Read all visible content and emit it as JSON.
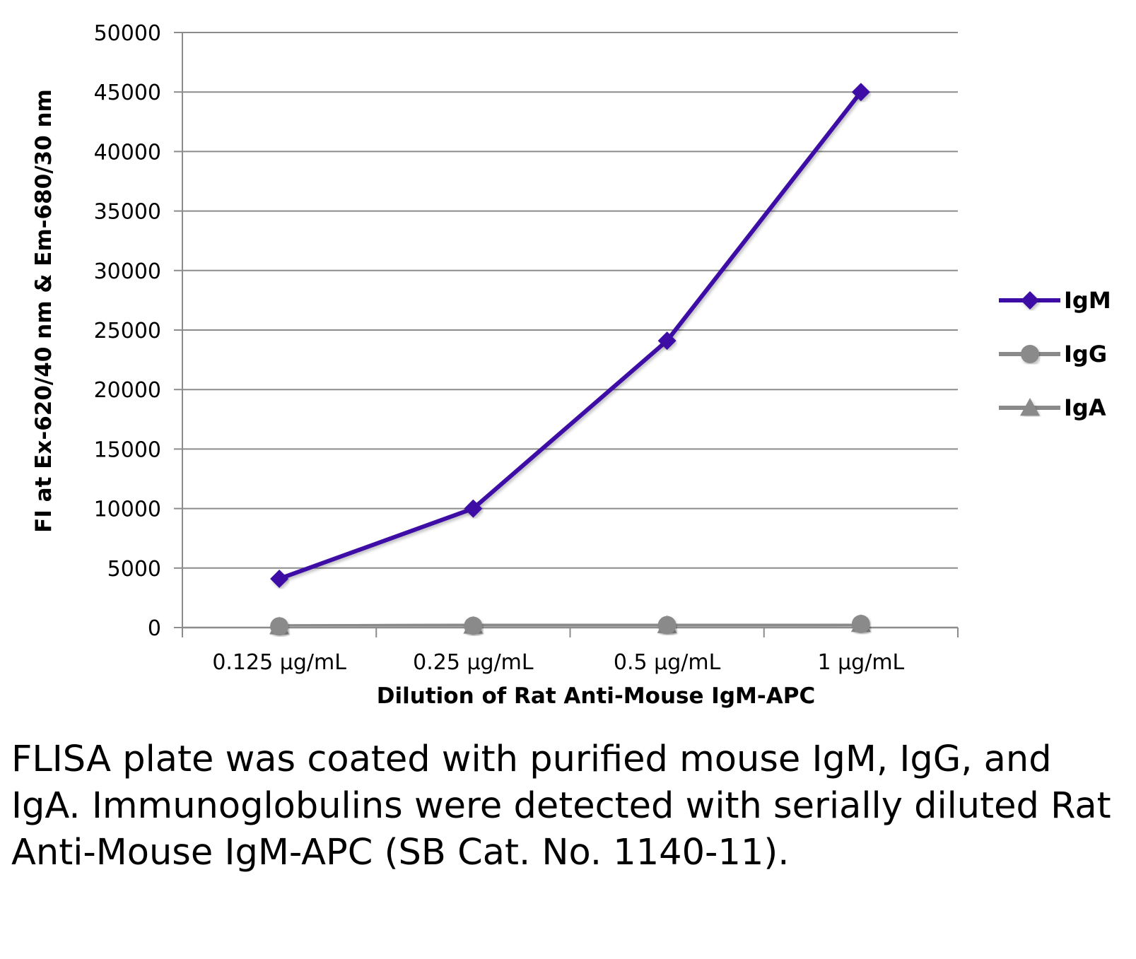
{
  "chart_data": {
    "type": "line",
    "categories": [
      "0.125 µg/mL",
      "0.25 µg/mL",
      "0.5 µg/mL",
      "1 µg/mL"
    ],
    "series": [
      {
        "name": "IgM",
        "values": [
          4100,
          10000,
          24100,
          45000
        ],
        "color": "#3d0ba6",
        "marker": "diamond"
      },
      {
        "name": "IgG",
        "values": [
          100,
          150,
          200,
          300
        ],
        "color": "#8a8a8a",
        "marker": "circle"
      },
      {
        "name": "IgA",
        "values": [
          100,
          150,
          200,
          300
        ],
        "color": "#8a8a8a",
        "marker": "triangle"
      }
    ],
    "xlabel": "Dilution of Rat Anti-Mouse IgM-APC",
    "ylabel": "FI at Ex-620/40 nm & Em-680/30 nm",
    "ylim": [
      0,
      50000
    ],
    "yticks": [
      0,
      5000,
      10000,
      15000,
      20000,
      25000,
      30000,
      35000,
      40000,
      45000,
      50000
    ],
    "grid": true,
    "legend": "right"
  },
  "caption": "FLISA plate was coated with purified mouse IgM, IgG, and IgA.  Immunoglobulins were detected with serially diluted Rat Anti-Mouse IgM-APC (SB Cat. No. 1140-11)."
}
